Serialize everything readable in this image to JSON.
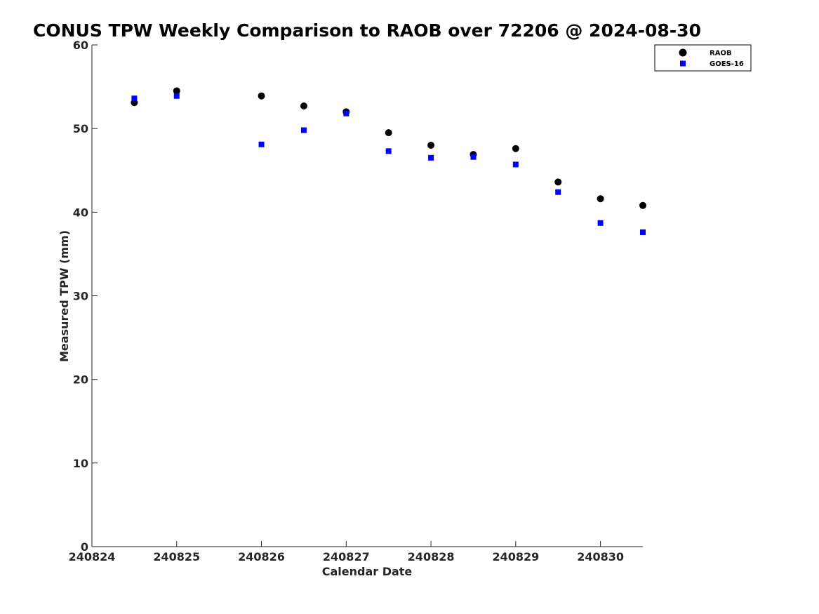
{
  "chart_data": {
    "type": "scatter",
    "title": "CONUS TPW Weekly Comparison to RAOB over 72206 @ 2024-08-30",
    "xlabel": "Calendar Date",
    "ylabel": "Measured TPW (mm)",
    "x_tick_labels": [
      "240824",
      "240825",
      "240826",
      "240827",
      "240828",
      "240829",
      "240830"
    ],
    "y_tick_labels": [
      "0",
      "10",
      "20",
      "30",
      "40",
      "50",
      "60"
    ],
    "xlim": [
      "240824",
      "240830 12:00"
    ],
    "ylim": [
      0,
      60
    ],
    "grid": false,
    "legend_position": "top-right",
    "x": [
      "240824 12:00",
      "240825 00:00",
      "240826 00:00",
      "240826 12:00",
      "240827 00:00",
      "240827 12:00",
      "240828 00:00",
      "240828 12:00",
      "240829 00:00",
      "240829 12:00",
      "240830 00:00",
      "240830 12:00"
    ],
    "series": [
      {
        "name": "RAOB",
        "marker": "circle",
        "color": "#000000",
        "values": [
          53.1,
          54.5,
          53.9,
          52.7,
          52.0,
          49.5,
          48.0,
          46.9,
          47.6,
          43.6,
          41.6,
          40.8
        ]
      },
      {
        "name": "GOES-16",
        "marker": "square",
        "color": "#0000ff",
        "values": [
          53.6,
          53.9,
          48.1,
          49.8,
          51.8,
          47.3,
          46.5,
          46.6,
          45.7,
          42.4,
          38.7,
          37.6
        ]
      }
    ]
  }
}
